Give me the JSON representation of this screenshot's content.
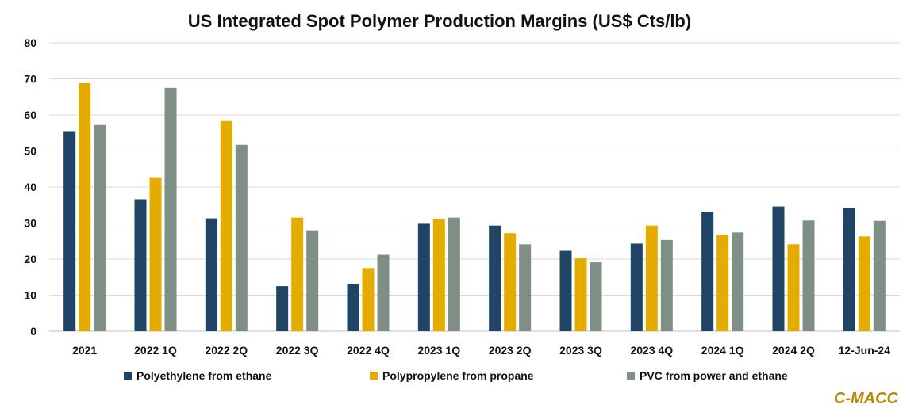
{
  "chart_data": {
    "type": "bar",
    "title": "US Integrated Spot Polymer Production Margins (US$ Cts/lb)",
    "categories": [
      "2021",
      "2022 1Q",
      "2022 2Q",
      "2022 3Q",
      "2022 4Q",
      "2023 1Q",
      "2023 2Q",
      "2023 3Q",
      "2023 4Q",
      "2024 1Q",
      "2024 2Q",
      "12-Jun-24"
    ],
    "series": [
      {
        "name": "Polyethylene from ethane",
        "color": "#1f4466",
        "values": [
          55.5,
          36.6,
          31.3,
          12.5,
          13.1,
          29.8,
          29.3,
          22.3,
          24.3,
          33.1,
          34.6,
          34.2
        ]
      },
      {
        "name": "Polypropylene from propane",
        "color": "#e5ac00",
        "values": [
          68.8,
          42.5,
          58.3,
          31.5,
          17.5,
          31.1,
          27.2,
          20.2,
          29.3,
          26.8,
          24.1,
          26.3
        ]
      },
      {
        "name": "PVC from power and ethane",
        "color": "#7f8f86",
        "values": [
          57.2,
          67.5,
          51.7,
          28.0,
          21.2,
          31.5,
          24.1,
          19.1,
          25.3,
          27.4,
          30.7,
          30.6
        ]
      }
    ],
    "ylim": [
      0,
      80
    ],
    "yticks": [
      0,
      10,
      20,
      30,
      40,
      50,
      60,
      70,
      80
    ],
    "grid": true,
    "legend_position": "bottom"
  },
  "source_label": "C-MACC"
}
